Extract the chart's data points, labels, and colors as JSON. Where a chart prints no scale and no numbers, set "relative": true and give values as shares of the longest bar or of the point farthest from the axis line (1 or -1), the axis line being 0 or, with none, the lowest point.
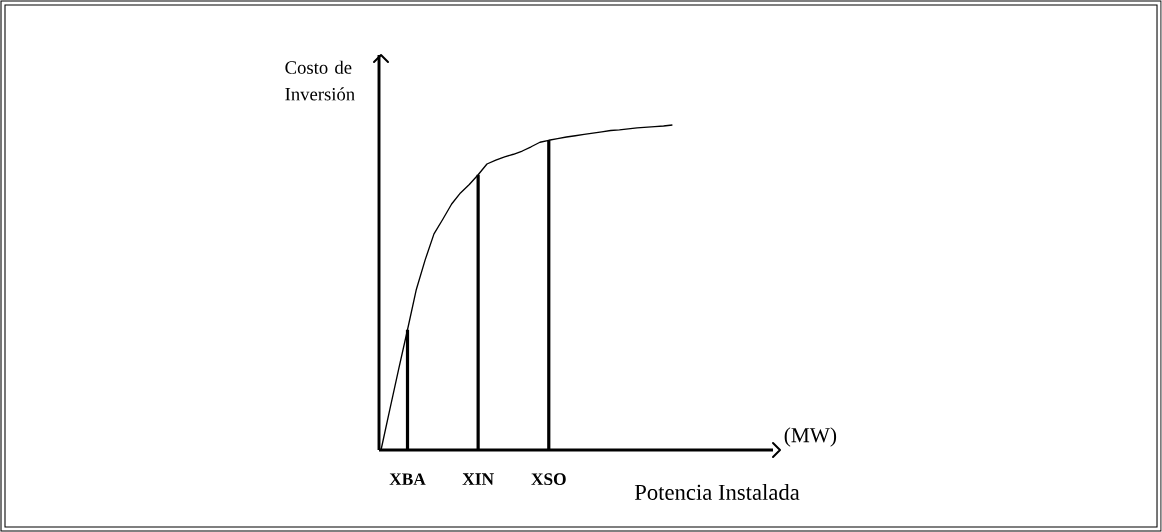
{
  "chart_data": {
    "type": "line",
    "relative": true,
    "xlabel": "Potencia Instalada",
    "ylabel": "Costo de Inversión",
    "annotations": [
      "(MW)"
    ],
    "tick_labels": "x",
    "categories": [
      null,
      null,
      null,
      "XBA",
      null,
      null,
      null,
      null,
      null,
      null,
      null,
      "XIN",
      null,
      null,
      null,
      null,
      null,
      null,
      null,
      "XSO",
      null,
      null,
      null,
      null,
      null,
      null,
      null,
      null,
      null,
      null,
      null,
      null,
      null,
      null
    ],
    "series": [
      {
        "color": "#000000",
        "values": [
          0,
          0.125,
          0.249,
          0.37,
          0.494,
          0.585,
          0.665,
          0.71,
          0.757,
          0.791,
          0.817,
          0.847,
          0.88,
          0.892,
          0.902,
          0.91,
          0.92,
          0.933,
          0.947,
          0.953,
          0.958,
          0.963,
          0.967,
          0.971,
          0.975,
          0.979,
          0.983,
          0.985,
          0.988,
          0.991,
          0.993,
          0.995,
          0.997,
          1.0
        ]
      },
      {
        "type": "bar",
        "color": "#000000",
        "values": [
          null,
          null,
          null,
          0.37,
          null,
          null,
          null,
          null,
          null,
          null,
          null,
          0.847,
          null,
          null,
          null,
          null,
          null,
          null,
          null,
          0.953,
          null,
          null,
          null,
          null,
          null,
          null,
          null,
          null,
          null,
          null,
          null,
          null,
          null,
          null
        ]
      }
    ]
  }
}
